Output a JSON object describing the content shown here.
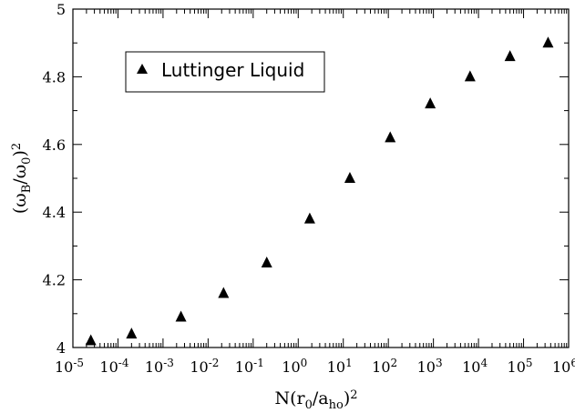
{
  "chart_data": {
    "type": "scatter",
    "x_scale": "log10",
    "xlim": [
      1e-05,
      1000000.0
    ],
    "ylim": [
      4.0,
      5.0
    ],
    "x_tick_exponents": [
      -5,
      -4,
      -3,
      -2,
      -1,
      0,
      1,
      2,
      3,
      4,
      5,
      6
    ],
    "y_ticks": [
      "4",
      "4.2",
      "4.4",
      "4.6",
      "4.8",
      "5"
    ],
    "series": [
      {
        "name": "Luttinger Liquid",
        "marker": "triangle-up",
        "color": "#000000",
        "x": [
          2.5e-05,
          0.0002,
          0.0025,
          0.022,
          0.2,
          1.8,
          14,
          110,
          850,
          6500,
          50000,
          350000
        ],
        "y": [
          4.02,
          4.04,
          4.09,
          4.16,
          4.25,
          4.38,
          4.5,
          4.62,
          4.72,
          4.8,
          4.86,
          4.9
        ]
      }
    ],
    "legend_placement": "upper-left inside plot, boxed",
    "grid": false
  }
}
